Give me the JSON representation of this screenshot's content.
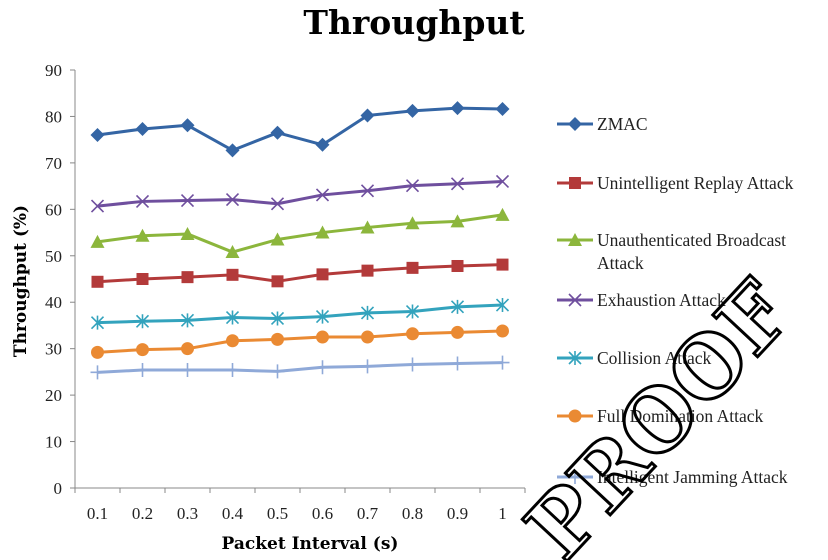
{
  "chart_data": {
    "type": "line",
    "title": "Throughput",
    "xlabel": "Packet Interval (s)",
    "ylabel": "Throughput (%)",
    "categories": [
      "0.1",
      "0.2",
      "0.3",
      "0.4",
      "0.5",
      "0.6",
      "0.7",
      "0.8",
      "0.9",
      "1"
    ],
    "ylim": [
      0,
      90
    ],
    "yticks": [
      "0",
      "10",
      "20",
      "30",
      "40",
      "50",
      "60",
      "70",
      "80",
      "90"
    ],
    "grid": false,
    "legend_position": "right",
    "series": [
      {
        "name": "ZMAC",
        "marker": "diamond",
        "color": "#3465a4",
        "values": [
          76,
          77.3,
          78.1,
          72.7,
          76.5,
          73.9,
          80.2,
          81.2,
          81.8,
          81.6
        ]
      },
      {
        "name": "Unintelligent Replay Attack",
        "marker": "square",
        "color": "#b33a3a",
        "values": [
          44.4,
          45,
          45.4,
          45.9,
          44.5,
          46,
          46.8,
          47.4,
          47.8,
          48.1
        ]
      },
      {
        "name": "Unauthenticated Broadcast Attack",
        "marker": "triangle",
        "color": "#8cb63c",
        "values": [
          53,
          54.3,
          54.7,
          50.8,
          53.5,
          55,
          56.1,
          57,
          57.4,
          58.8
        ]
      },
      {
        "name": "Exhaustion Attack",
        "marker": "x",
        "color": "#6f4f9e",
        "values": [
          60.7,
          61.7,
          61.9,
          62.1,
          61.2,
          63.1,
          64,
          65.1,
          65.5,
          66
        ]
      },
      {
        "name": "Collision Attack",
        "marker": "star",
        "color": "#33a3bd",
        "values": [
          35.6,
          35.9,
          36.1,
          36.7,
          36.5,
          36.9,
          37.7,
          38,
          39,
          39.4
        ]
      },
      {
        "name": "Full Domination Attack",
        "marker": "circle",
        "color": "#ea8a33",
        "values": [
          29.2,
          29.8,
          30,
          31.7,
          32,
          32.5,
          32.5,
          33.2,
          33.5,
          33.8
        ]
      },
      {
        "name": "Intelligent Jamming Attack",
        "marker": "plus",
        "color": "#8fa9d8",
        "values": [
          24.9,
          25.4,
          25.4,
          25.4,
          25.1,
          26,
          26.2,
          26.6,
          26.8,
          27
        ]
      }
    ],
    "legend_lines": [
      [
        "ZMAC"
      ],
      [
        "Unintelligent Replay Attack"
      ],
      [
        "Unauthenticated Broadcast",
        "Attack"
      ],
      [
        "Exhaustion Attack"
      ],
      [
        "Collision Attack"
      ],
      [
        "Full Domination Attack"
      ],
      [
        "Intelligent Jamming Attack"
      ]
    ]
  },
  "watermark": "PROOF"
}
